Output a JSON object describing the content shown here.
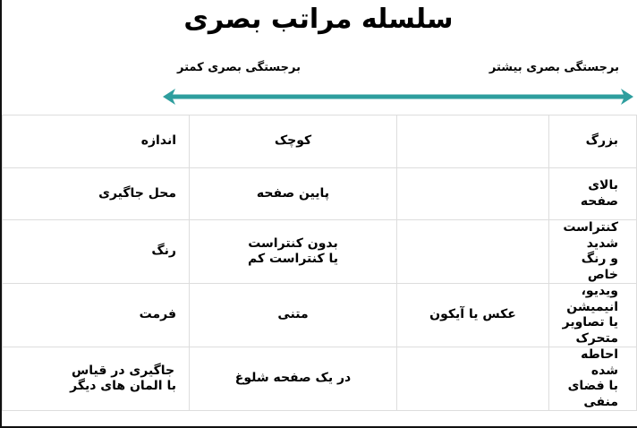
{
  "title": "سلسله مراتب بصری",
  "scale": {
    "more_label": "برجستگی بصری بیشتر",
    "less_label": "برجستگی بصری کمتر",
    "arrow_color": "#2e9e9e"
  },
  "rows": [
    {
      "attribute": "اندازه",
      "high": "بزرگ",
      "middle": "",
      "low": "کوچک"
    },
    {
      "attribute": "محل جاگیری",
      "high": "بالای صفحه",
      "middle": "",
      "low": "پایین صفحه"
    },
    {
      "attribute": "رنگ",
      "high": "کنتراست شدید\nو رنگ خاص",
      "middle": "",
      "low": "بدون کنتراست\nیا کنتراست کم"
    },
    {
      "attribute": "فرمت",
      "high": "ویدیو، انیمیشن\nیا تصاویر متحرک",
      "middle": "عکس یا آیکون",
      "low": "متنی"
    },
    {
      "attribute": "جاگیری در قیاس\nبا المان های دیگر",
      "high": "احاطه شده\nبا فضای منفی",
      "middle": "",
      "low": "در یک صفحه شلوغ"
    }
  ]
}
